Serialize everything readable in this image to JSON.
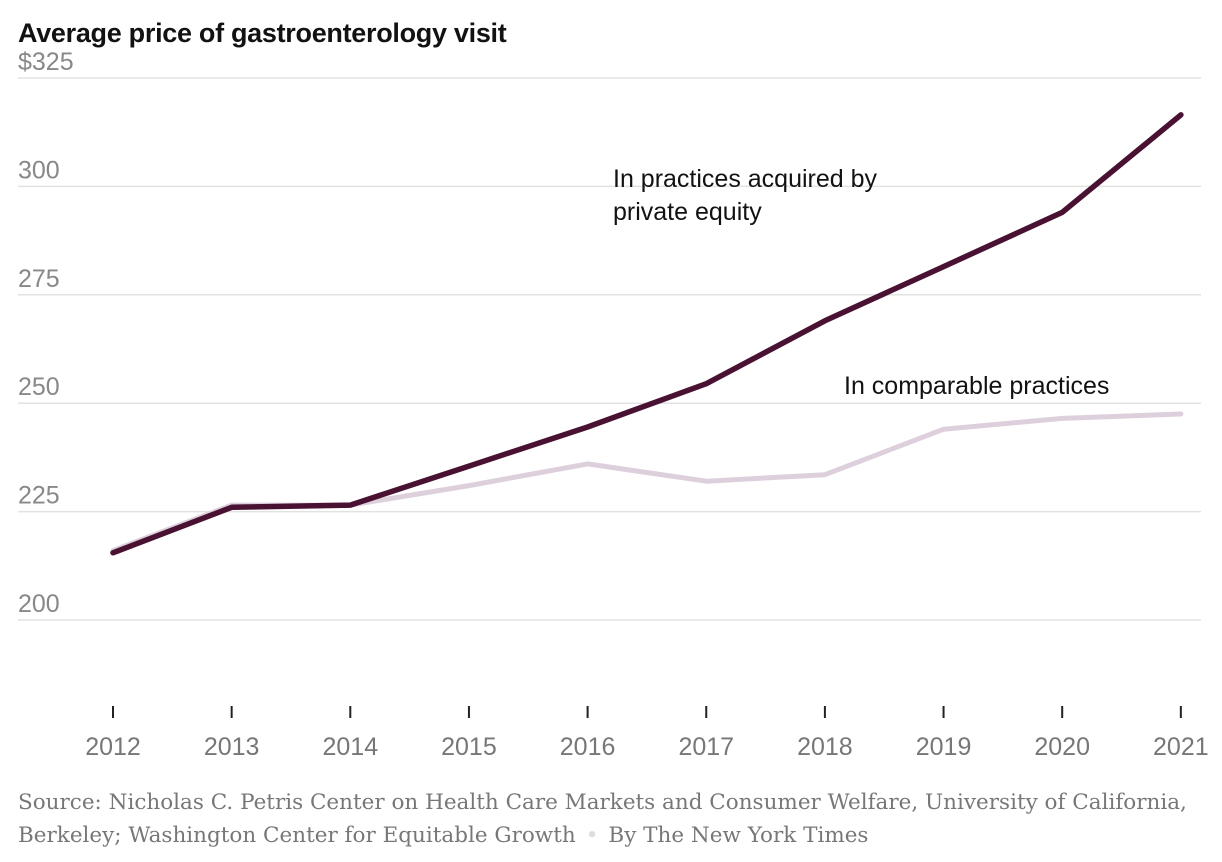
{
  "chart_data": {
    "type": "line",
    "title": "Average price of gastroenterology visit",
    "x": [
      "2012",
      "2013",
      "2014",
      "2015",
      "2016",
      "2017",
      "2018",
      "2019",
      "2020",
      "2021"
    ],
    "ylim": [
      180,
      325
    ],
    "yticks": [
      200,
      225,
      250,
      275,
      300,
      325
    ],
    "ytick_labels": [
      "200",
      "225",
      "250",
      "275",
      "300",
      "$325"
    ],
    "grid": true,
    "series": [
      {
        "name": "In comparable practices",
        "color": "#ddd0dc",
        "values": [
          216,
          226.5,
          226.5,
          231,
          236,
          232,
          233.5,
          244,
          246.5,
          247.5
        ]
      },
      {
        "name": "In practices acquired by private equity",
        "color": "#4a1232",
        "values": [
          215.5,
          226,
          226.5,
          235.5,
          244.5,
          254.5,
          269,
          281.5,
          294,
          316.5
        ]
      }
    ],
    "annotations": {
      "pe_line1": "In practices acquired by",
      "pe_line2": "private equity",
      "comparable": "In comparable practices"
    }
  },
  "source": {
    "text": "Source: Nicholas C. Petris Center on Health Care Markets and Consumer Welfare, University of California, Berkeley; Washington Center for Equitable Growth",
    "separator": "•",
    "byline": "By The New York Times"
  }
}
